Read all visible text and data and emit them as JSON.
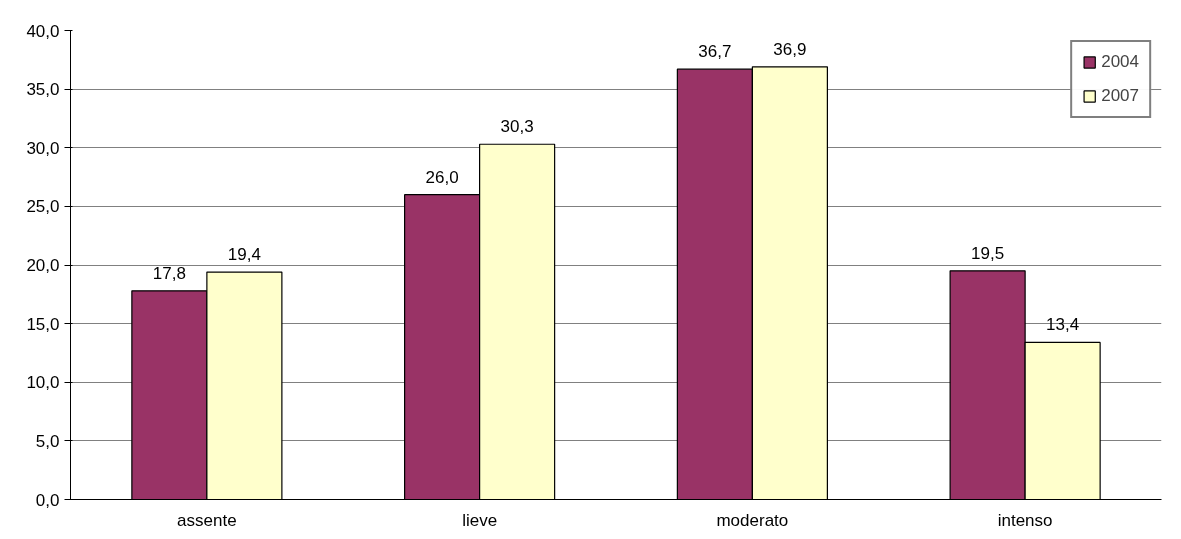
{
  "chart_data": {
    "type": "bar",
    "categories": [
      "assente",
      "lieve",
      "moderato",
      "intenso"
    ],
    "series": [
      {
        "name": "2004",
        "color": "#993366",
        "values": [
          17.8,
          26.0,
          36.7,
          19.5
        ],
        "value_labels": [
          "17,8",
          "26,0",
          "36,7",
          "19,5"
        ]
      },
      {
        "name": "2007",
        "color": "#ffffcc",
        "values": [
          19.4,
          30.3,
          36.9,
          13.4
        ],
        "value_labels": [
          "19,4",
          "30,3",
          "36,9",
          "13,4"
        ]
      }
    ],
    "ylim": [
      0,
      40
    ],
    "yticks": [
      {
        "value": 0,
        "label": "0,0"
      },
      {
        "value": 5,
        "label": "5,0"
      },
      {
        "value": 10,
        "label": "10,0"
      },
      {
        "value": 15,
        "label": "15,0"
      },
      {
        "value": 20,
        "label": "20,0"
      },
      {
        "value": 25,
        "label": "25,0"
      },
      {
        "value": 30,
        "label": "30,0"
      },
      {
        "value": 35,
        "label": "35,0"
      },
      {
        "value": 40,
        "label": "40,0"
      }
    ],
    "grid": "y",
    "legend": "top right"
  }
}
